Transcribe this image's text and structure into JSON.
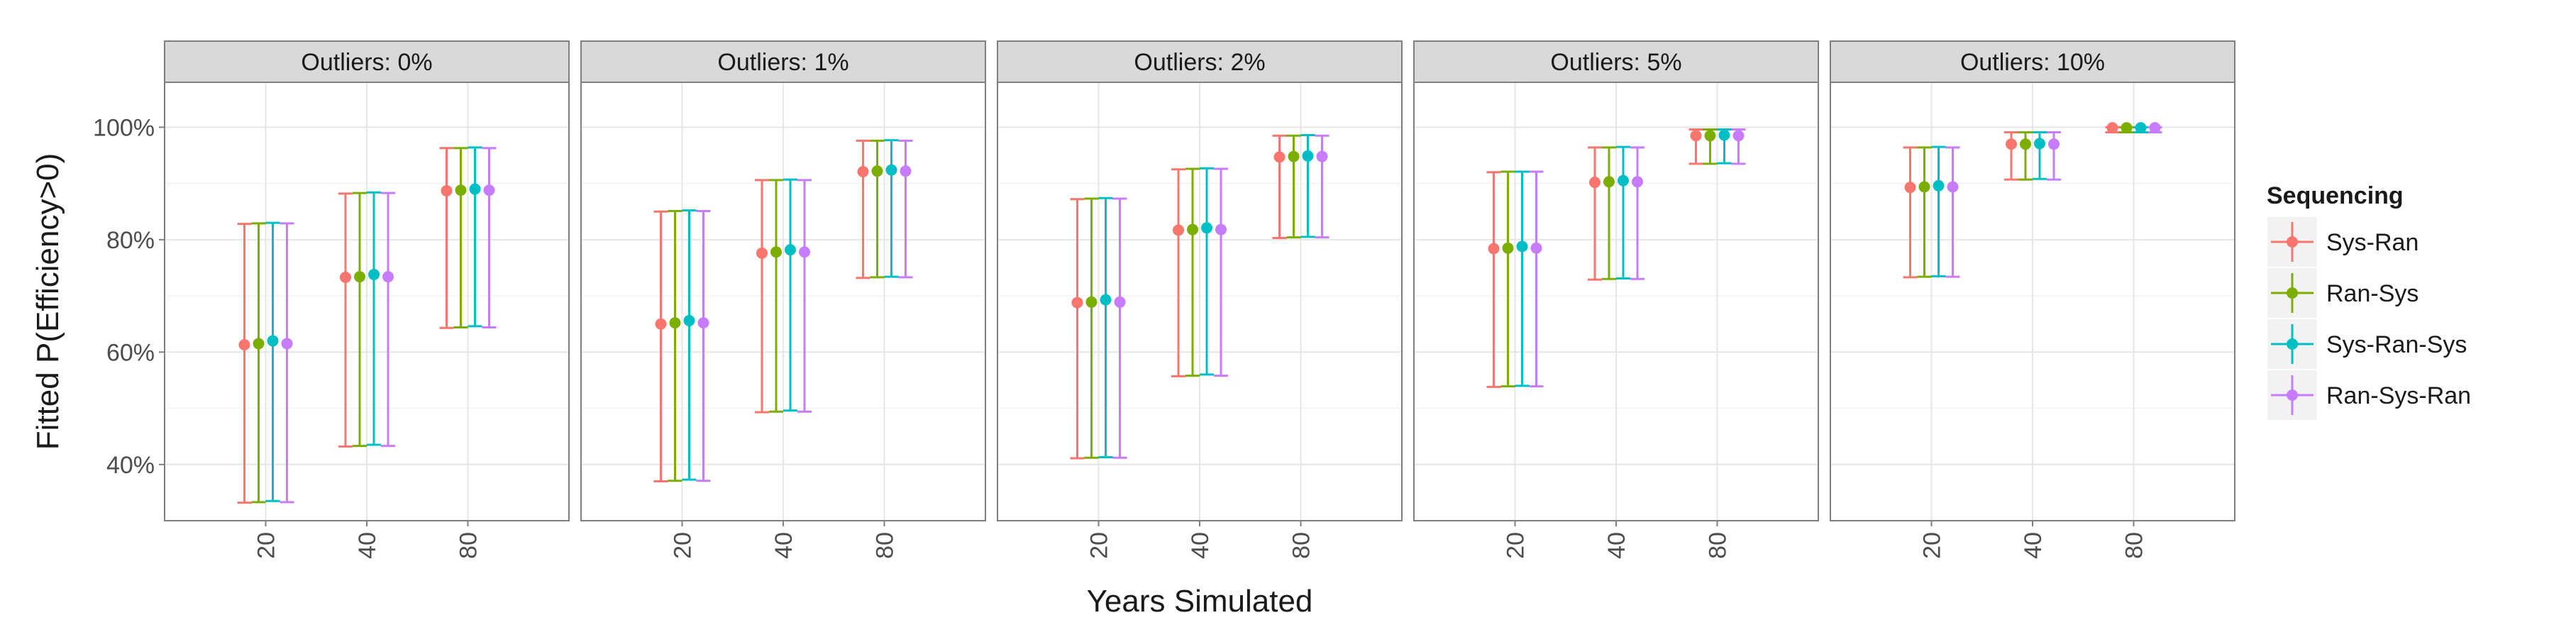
{
  "chart_data": {
    "type": "scatter",
    "xlabel": "Years Simulated",
    "ylabel": "Fitted P(Efficiency>0)",
    "categories": [
      "20",
      "40",
      "80"
    ],
    "ylim": [
      0.3,
      1.08
    ],
    "yticks": [
      0.4,
      0.6,
      0.8,
      1.0
    ],
    "ytick_labels": [
      "40%",
      "60%",
      "80%",
      "100%"
    ],
    "grid": true,
    "legend": {
      "title": "Sequencing",
      "placement": "right",
      "entries": [
        "Sys-Ran",
        "Ran-Sys",
        "Sys-Ran-Sys",
        "Ran-Sys-Ran"
      ]
    },
    "colors": {
      "Sys-Ran": "#F8766D",
      "Ran-Sys": "#7CAE00",
      "Sys-Ran-Sys": "#00BFC4",
      "Ran-Sys-Ran": "#C77CFF"
    },
    "panels": [
      {
        "strip": "Outliers: 0%",
        "series": [
          {
            "name": "Sys-Ran",
            "values": [
              0.613,
              0.733,
              0.887
            ],
            "lower": [
              0.332,
              0.432,
              0.643
            ],
            "upper": [
              0.828,
              0.882,
              0.963
            ]
          },
          {
            "name": "Ran-Sys",
            "values": [
              0.615,
              0.734,
              0.888
            ],
            "lower": [
              0.333,
              0.433,
              0.644
            ],
            "upper": [
              0.829,
              0.883,
              0.963
            ]
          },
          {
            "name": "Sys-Ran-Sys",
            "values": [
              0.62,
              0.738,
              0.89
            ],
            "lower": [
              0.335,
              0.435,
              0.646
            ],
            "upper": [
              0.83,
              0.884,
              0.964
            ]
          },
          {
            "name": "Ran-Sys-Ran",
            "values": [
              0.615,
              0.734,
              0.888
            ],
            "lower": [
              0.333,
              0.433,
              0.644
            ],
            "upper": [
              0.829,
              0.883,
              0.963
            ]
          }
        ]
      },
      {
        "strip": "Outliers: 1%",
        "series": [
          {
            "name": "Sys-Ran",
            "values": [
              0.65,
              0.776,
              0.921
            ],
            "lower": [
              0.37,
              0.493,
              0.732
            ],
            "upper": [
              0.85,
              0.906,
              0.976
            ]
          },
          {
            "name": "Ran-Sys",
            "values": [
              0.652,
              0.778,
              0.922
            ],
            "lower": [
              0.371,
              0.494,
              0.733
            ],
            "upper": [
              0.851,
              0.906,
              0.976
            ]
          },
          {
            "name": "Sys-Ran-Sys",
            "values": [
              0.656,
              0.782,
              0.924
            ],
            "lower": [
              0.373,
              0.496,
              0.734
            ],
            "upper": [
              0.852,
              0.907,
              0.977
            ]
          },
          {
            "name": "Ran-Sys-Ran",
            "values": [
              0.652,
              0.778,
              0.922
            ],
            "lower": [
              0.371,
              0.494,
              0.733
            ],
            "upper": [
              0.851,
              0.906,
              0.976
            ]
          }
        ]
      },
      {
        "strip": "Outliers: 2%",
        "series": [
          {
            "name": "Sys-Ran",
            "values": [
              0.688,
              0.817,
              0.947
            ],
            "lower": [
              0.411,
              0.557,
              0.803
            ],
            "upper": [
              0.872,
              0.925,
              0.985
            ]
          },
          {
            "name": "Ran-Sys",
            "values": [
              0.689,
              0.818,
              0.948
            ],
            "lower": [
              0.412,
              0.558,
              0.804
            ],
            "upper": [
              0.873,
              0.926,
              0.985
            ]
          },
          {
            "name": "Sys-Ran-Sys",
            "values": [
              0.693,
              0.821,
              0.949
            ],
            "lower": [
              0.413,
              0.56,
              0.805
            ],
            "upper": [
              0.874,
              0.927,
              0.986
            ]
          },
          {
            "name": "Ran-Sys-Ran",
            "values": [
              0.689,
              0.818,
              0.948
            ],
            "lower": [
              0.412,
              0.558,
              0.804
            ],
            "upper": [
              0.873,
              0.926,
              0.985
            ]
          }
        ]
      },
      {
        "strip": "Outliers: 5%",
        "series": [
          {
            "name": "Sys-Ran",
            "values": [
              0.784,
              0.902,
              0.985
            ],
            "lower": [
              0.538,
              0.729,
              0.935
            ],
            "upper": [
              0.92,
              0.964,
              0.996
            ]
          },
          {
            "name": "Ran-Sys",
            "values": [
              0.785,
              0.903,
              0.985
            ],
            "lower": [
              0.539,
              0.73,
              0.935
            ],
            "upper": [
              0.921,
              0.964,
              0.996
            ]
          },
          {
            "name": "Sys-Ran-Sys",
            "values": [
              0.788,
              0.905,
              0.986
            ],
            "lower": [
              0.54,
              0.731,
              0.936
            ],
            "upper": [
              0.921,
              0.965,
              0.996
            ]
          },
          {
            "name": "Ran-Sys-Ran",
            "values": [
              0.785,
              0.903,
              0.985
            ],
            "lower": [
              0.539,
              0.73,
              0.935
            ],
            "upper": [
              0.921,
              0.964,
              0.996
            ]
          }
        ]
      },
      {
        "strip": "Outliers: 10%",
        "series": [
          {
            "name": "Sys-Ran",
            "values": [
              0.893,
              0.97,
              0.999
            ],
            "lower": [
              0.733,
              0.907,
              0.991
            ],
            "upper": [
              0.964,
              0.991,
              1.0
            ]
          },
          {
            "name": "Ran-Sys",
            "values": [
              0.894,
              0.97,
              0.999
            ],
            "lower": [
              0.734,
              0.907,
              0.991
            ],
            "upper": [
              0.964,
              0.991,
              1.0
            ]
          },
          {
            "name": "Sys-Ran-Sys",
            "values": [
              0.896,
              0.971,
              0.999
            ],
            "lower": [
              0.735,
              0.908,
              0.991
            ],
            "upper": [
              0.965,
              0.991,
              1.0
            ]
          },
          {
            "name": "Ran-Sys-Ran",
            "values": [
              0.894,
              0.97,
              0.999
            ],
            "lower": [
              0.734,
              0.907,
              0.991
            ],
            "upper": [
              0.964,
              0.991,
              1.0
            ]
          }
        ]
      }
    ]
  }
}
